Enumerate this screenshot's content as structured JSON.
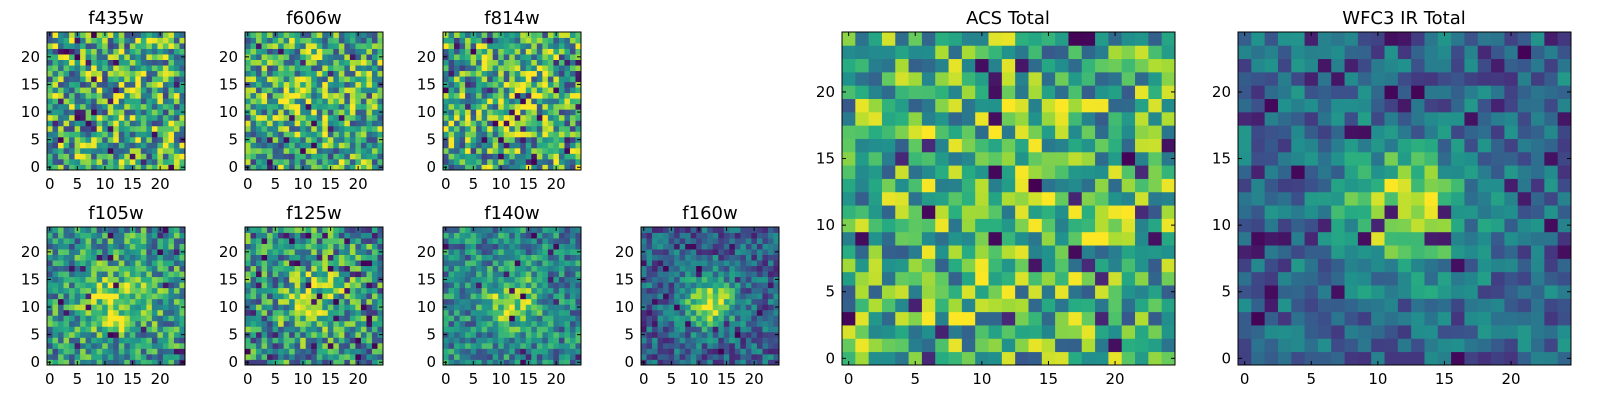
{
  "figure": {
    "description_free": true
  },
  "palette": {
    "viridis": [
      "#440154",
      "#472c7a",
      "#3b518b",
      "#2c718e",
      "#21908d",
      "#27ad81",
      "#5cc863",
      "#aadc32",
      "#fde725"
    ],
    "axes_color": "#000000",
    "background": "#ffffff"
  },
  "chart_data": [
    {
      "type": "heatmap",
      "title": "f435w",
      "size": 25,
      "xticks": [
        "0",
        "5",
        "10",
        "15",
        "20"
      ],
      "yticks": [
        "0",
        "5",
        "10",
        "15",
        "20"
      ],
      "pattern": "noise",
      "seed": 11,
      "base": 0.62,
      "noise": 0.42,
      "blob_amp": 0.0,
      "blob_x": 12,
      "blob_y": 12,
      "blob_sigma": 4,
      "dark_fraction": 0.04
    },
    {
      "type": "heatmap",
      "title": "f606w",
      "size": 25,
      "xticks": [
        "0",
        "5",
        "10",
        "15",
        "20"
      ],
      "yticks": [
        "0",
        "5",
        "10",
        "15",
        "20"
      ],
      "pattern": "noise",
      "seed": 23,
      "base": 0.6,
      "noise": 0.4,
      "blob_amp": 0.12,
      "blob_x": 11,
      "blob_y": 12,
      "blob_sigma": 4,
      "dark_fraction": 0.02
    },
    {
      "type": "heatmap",
      "title": "f814w",
      "size": 25,
      "xticks": [
        "0",
        "5",
        "10",
        "15",
        "20"
      ],
      "yticks": [
        "0",
        "5",
        "10",
        "15",
        "20"
      ],
      "pattern": "noise",
      "seed": 37,
      "base": 0.6,
      "noise": 0.42,
      "blob_amp": 0.15,
      "blob_x": 13,
      "blob_y": 12,
      "blob_sigma": 4,
      "dark_fraction": 0.05
    },
    {
      "type": "heatmap",
      "title": "f105w",
      "size": 25,
      "xticks": [
        "0",
        "5",
        "10",
        "15",
        "20"
      ],
      "yticks": [
        "0",
        "5",
        "10",
        "15",
        "20"
      ],
      "pattern": "blob",
      "seed": 41,
      "base": 0.52,
      "noise": 0.32,
      "blob_amp": 0.38,
      "blob_x": 12,
      "blob_y": 11,
      "blob_sigma": 4,
      "dark_fraction": 0.03
    },
    {
      "type": "heatmap",
      "title": "f125w",
      "size": 25,
      "xticks": [
        "0",
        "5",
        "10",
        "15",
        "20"
      ],
      "yticks": [
        "0",
        "5",
        "10",
        "15",
        "20"
      ],
      "pattern": "blob",
      "seed": 53,
      "base": 0.5,
      "noise": 0.36,
      "blob_amp": 0.36,
      "blob_x": 12,
      "blob_y": 11,
      "blob_sigma": 4,
      "dark_fraction": 0.06
    },
    {
      "type": "heatmap",
      "title": "f140w",
      "size": 25,
      "xticks": [
        "0",
        "5",
        "10",
        "15",
        "20"
      ],
      "yticks": [
        "0",
        "5",
        "10",
        "15",
        "20"
      ],
      "pattern": "blob",
      "seed": 67,
      "base": 0.46,
      "noise": 0.26,
      "blob_amp": 0.42,
      "blob_x": 12,
      "blob_y": 11,
      "blob_sigma": 3.5,
      "dark_fraction": 0.02
    },
    {
      "type": "heatmap",
      "title": "f160w",
      "size": 25,
      "xticks": [
        "0",
        "5",
        "10",
        "15",
        "20"
      ],
      "yticks": [
        "0",
        "5",
        "10",
        "15",
        "20"
      ],
      "pattern": "blob",
      "seed": 79,
      "base": 0.32,
      "noise": 0.22,
      "blob_amp": 0.6,
      "blob_x": 12,
      "blob_y": 11,
      "blob_sigma": 3.2,
      "dark_fraction": 0.06
    },
    {
      "type": "heatmap",
      "title": "ACS Total",
      "size": 25,
      "xticks": [
        "0",
        "5",
        "10",
        "15",
        "20"
      ],
      "yticks": [
        "0",
        "5",
        "10",
        "15",
        "20"
      ],
      "pattern": "noise",
      "seed": 97,
      "base": 0.62,
      "noise": 0.36,
      "blob_amp": 0.14,
      "blob_x": 12,
      "blob_y": 12,
      "blob_sigma": 5,
      "dark_fraction": 0.05
    },
    {
      "type": "heatmap",
      "title": "WFC3 IR Total",
      "size": 25,
      "xticks": [
        "0",
        "5",
        "10",
        "15",
        "20"
      ],
      "yticks": [
        "0",
        "5",
        "10",
        "15",
        "20"
      ],
      "pattern": "blob",
      "seed": 101,
      "base": 0.34,
      "noise": 0.2,
      "blob_amp": 0.62,
      "blob_x": 12,
      "blob_y": 11,
      "blob_sigma": 3.2,
      "dark_fraction": 0.07
    }
  ]
}
